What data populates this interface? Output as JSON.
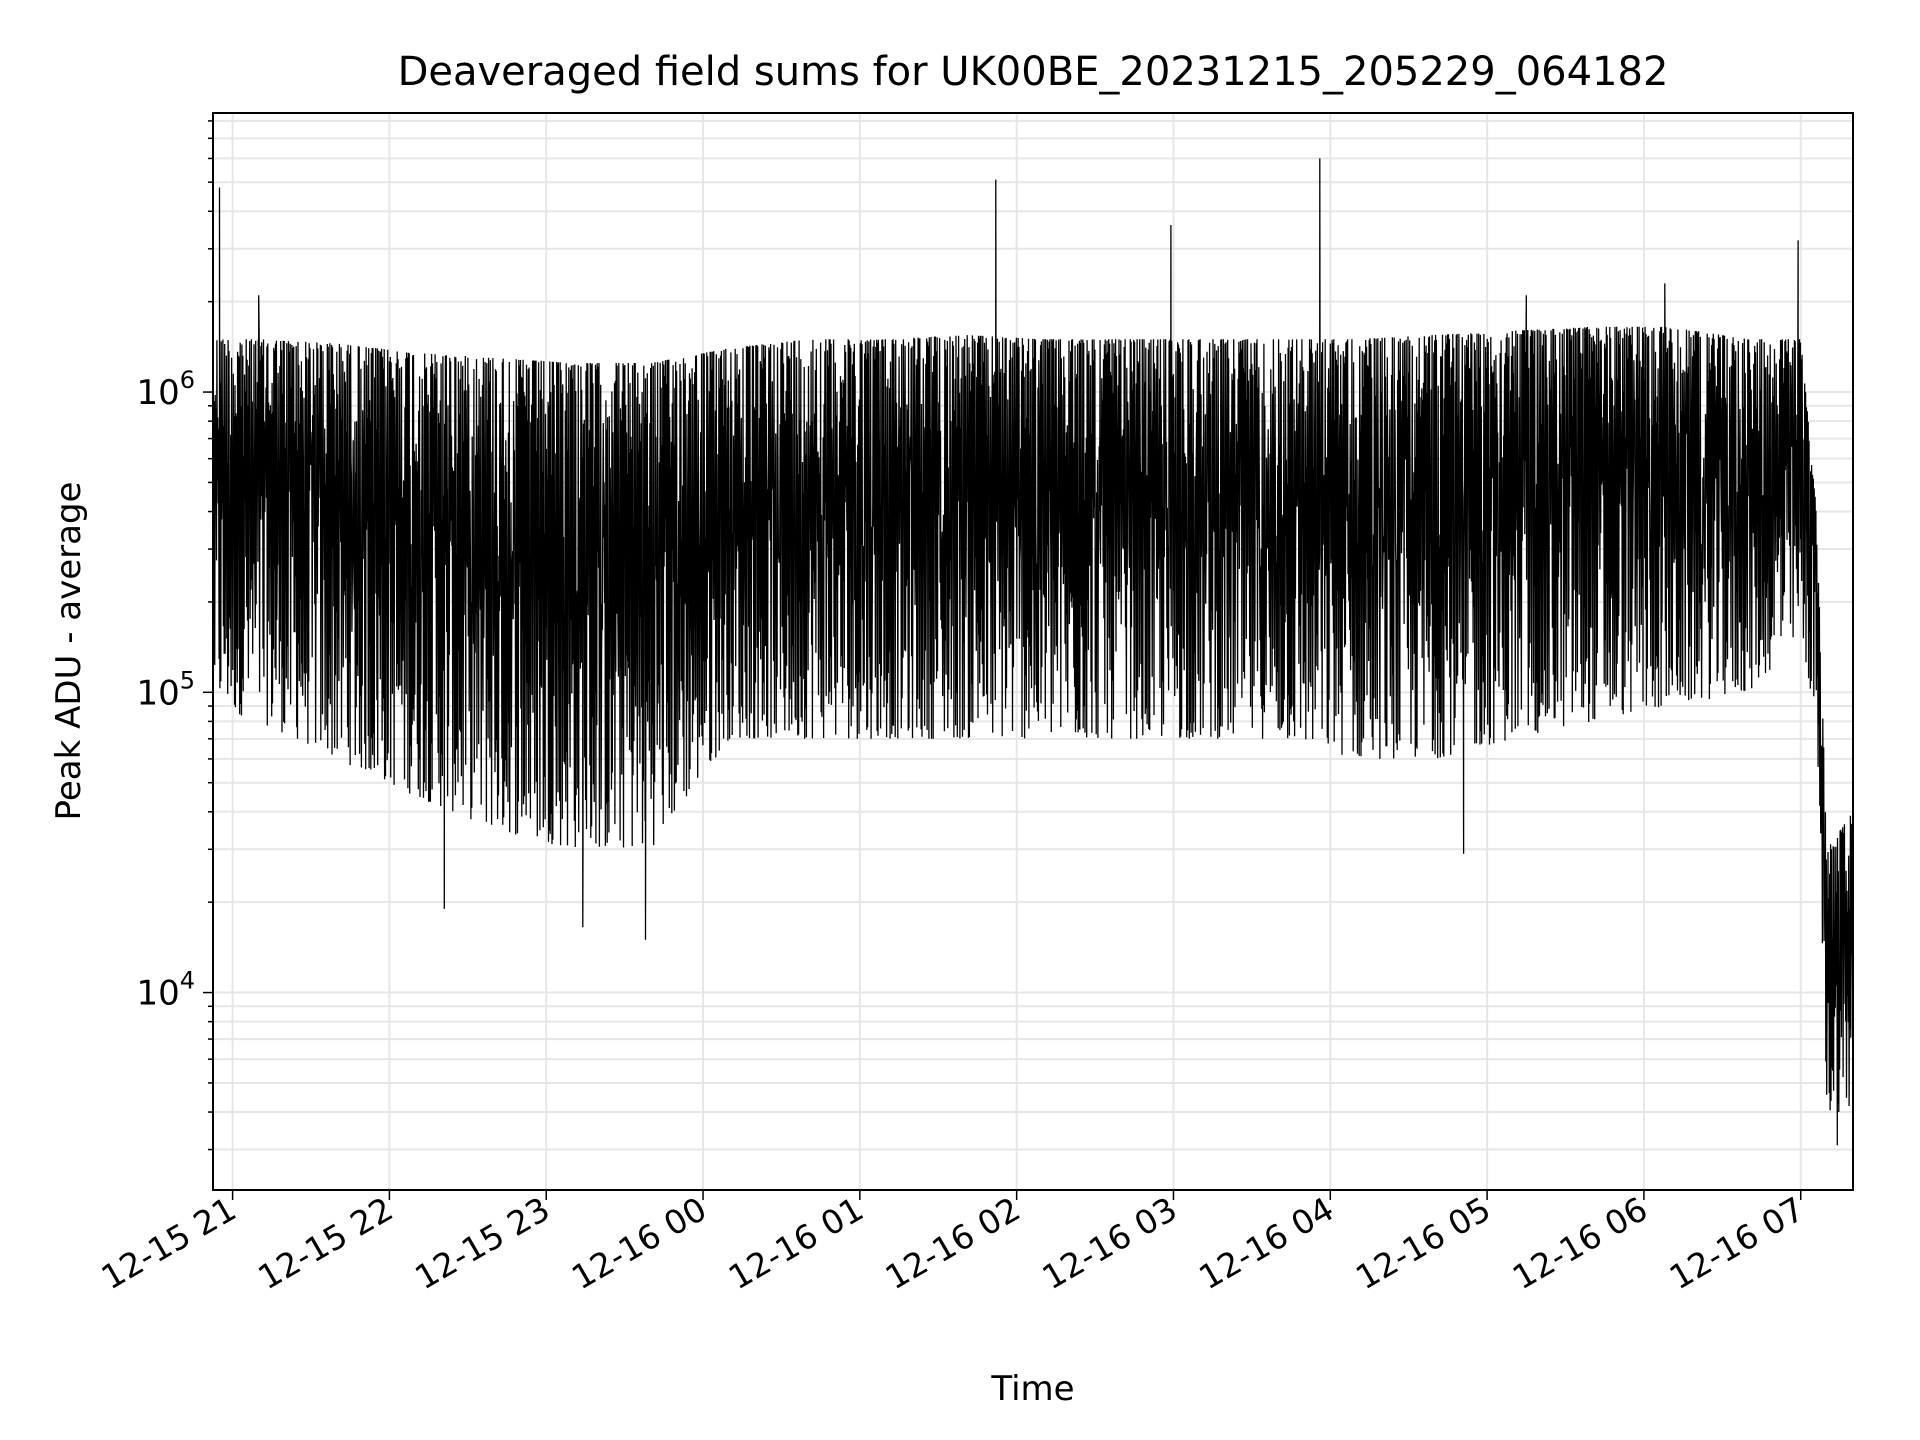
{
  "chart_data": {
    "type": "line",
    "title": "Deaveraged field sums for UK00BE_20231215_205229_064182",
    "xlabel": "Time",
    "ylabel": "Peak ADU - average",
    "yscale": "log",
    "ylim": [
      2200,
      8500000
    ],
    "xlim": [
      "2023-12-15 20:52:30",
      "2023-12-16 07:20:00"
    ],
    "grid": true,
    "line_color": "#000000",
    "grid_color": "#e6e6e6",
    "x_ticks": [
      {
        "label": "12-15 21",
        "time": "2023-12-15 21:00"
      },
      {
        "label": "12-15 22",
        "time": "2023-12-15 22:00"
      },
      {
        "label": "12-15 23",
        "time": "2023-12-15 23:00"
      },
      {
        "label": "12-16 00",
        "time": "2023-12-16 00:00"
      },
      {
        "label": "12-16 01",
        "time": "2023-12-16 01:00"
      },
      {
        "label": "12-16 02",
        "time": "2023-12-16 02:00"
      },
      {
        "label": "12-16 03",
        "time": "2023-12-16 03:00"
      },
      {
        "label": "12-16 04",
        "time": "2023-12-16 04:00"
      },
      {
        "label": "12-16 05",
        "time": "2023-12-16 05:00"
      },
      {
        "label": "12-16 06",
        "time": "2023-12-16 06:00"
      },
      {
        "label": "12-16 07",
        "time": "2023-12-16 07:00"
      }
    ],
    "y_ticks": [
      {
        "base": "10",
        "exp": "4",
        "value": 10000
      },
      {
        "base": "10",
        "exp": "5",
        "value": 100000
      },
      {
        "base": "10",
        "exp": "6",
        "value": 1000000
      }
    ],
    "envelope": {
      "description": "series oscillates rapidly between upper and lower envelopes",
      "x": [
        "2023-12-15 20:53",
        "2023-12-15 21:10",
        "2023-12-15 21:40",
        "2023-12-15 22:10",
        "2023-12-15 22:40",
        "2023-12-15 23:10",
        "2023-12-15 23:40",
        "2023-12-16 00:10",
        "2023-12-16 00:40",
        "2023-12-16 01:10",
        "2023-12-16 01:40",
        "2023-12-16 02:10",
        "2023-12-16 02:40",
        "2023-12-16 03:10",
        "2023-12-16 03:40",
        "2023-12-16 04:10",
        "2023-12-16 04:40",
        "2023-12-16 05:10",
        "2023-12-16 05:40",
        "2023-12-16 06:10",
        "2023-12-16 06:40",
        "2023-12-16 07:00",
        "2023-12-16 07:06",
        "2023-12-16 07:10",
        "2023-12-16 07:20"
      ],
      "upper": [
        1500000,
        1500000,
        1450000,
        1350000,
        1300000,
        1250000,
        1250000,
        1400000,
        1500000,
        1500000,
        1550000,
        1500000,
        1500000,
        1500000,
        1500000,
        1500000,
        1550000,
        1600000,
        1650000,
        1650000,
        1500000,
        1500000,
        400000,
        30000,
        40000
      ],
      "lower": [
        90000,
        80000,
        60000,
        45000,
        35000,
        30000,
        30000,
        70000,
        70000,
        70000,
        70000,
        70000,
        70000,
        70000,
        70000,
        60000,
        60000,
        70000,
        80000,
        90000,
        100000,
        150000,
        80000,
        4000,
        4000
      ]
    },
    "spikes": [
      {
        "x": "2023-12-15 20:55",
        "y": 4800000
      },
      {
        "x": "2023-12-15 21:10",
        "y": 2100000
      },
      {
        "x": "2023-12-16 01:52",
        "y": 5100000
      },
      {
        "x": "2023-12-16 02:59",
        "y": 3600000
      },
      {
        "x": "2023-12-16 03:56",
        "y": 6000000
      },
      {
        "x": "2023-12-16 05:15",
        "y": 2100000
      },
      {
        "x": "2023-12-16 06:08",
        "y": 2300000
      },
      {
        "x": "2023-12-16 06:59",
        "y": 3200000
      }
    ],
    "dips": [
      {
        "x": "2023-12-15 22:21",
        "y": 19000
      },
      {
        "x": "2023-12-15 23:14",
        "y": 16500
      },
      {
        "x": "2023-12-15 23:38",
        "y": 15000
      },
      {
        "x": "2023-12-16 04:51",
        "y": 29000
      },
      {
        "x": "2023-12-16 07:14",
        "y": 3100
      }
    ]
  }
}
